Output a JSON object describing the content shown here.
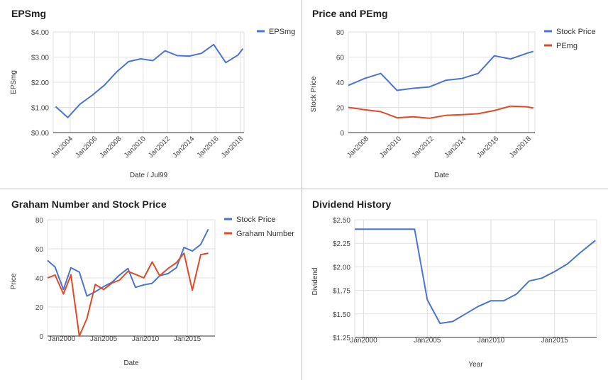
{
  "colors": {
    "blue": "#4a74d4",
    "red": "#df4a26",
    "grid": "#e0e0e0",
    "axis": "#333333"
  },
  "chart_data": [
    {
      "type": "line",
      "title": "EPSmg",
      "xlabel": "Date / Jul99",
      "ylabel": "EPSmg",
      "x_ticks": [
        {
          "v": 2004,
          "label": "Jan2004"
        },
        {
          "v": 2006,
          "label": "Jan2006"
        },
        {
          "v": 2008,
          "label": "Jan2008"
        },
        {
          "v": 2010,
          "label": "Jan2010"
        },
        {
          "v": 2012,
          "label": "Jan2012"
        },
        {
          "v": 2014,
          "label": "Jan2014"
        },
        {
          "v": 2016,
          "label": "Jan2016"
        },
        {
          "v": 2018,
          "label": "Jan2018"
        }
      ],
      "y_ticks": [
        {
          "v": 0,
          "label": "$0.00"
        },
        {
          "v": 1,
          "label": "$1.00"
        },
        {
          "v": 2,
          "label": "$2.00"
        },
        {
          "v": 3,
          "label": "$3.00"
        },
        {
          "v": 4,
          "label": "$4.00"
        }
      ],
      "xlim": [
        2002.6,
        2018.3
      ],
      "ylim": [
        0,
        4
      ],
      "legend_position": "right",
      "series": [
        {
          "name": "EPSmg",
          "color": "#4a74d4",
          "points": [
            [
              2002.8,
              1.03
            ],
            [
              2003.8,
              0.6
            ],
            [
              2004.8,
              1.13
            ],
            [
              2005.8,
              1.48
            ],
            [
              2006.8,
              1.88
            ],
            [
              2007.8,
              2.4
            ],
            [
              2008.8,
              2.82
            ],
            [
              2009.8,
              2.93
            ],
            [
              2010.8,
              2.86
            ],
            [
              2011.8,
              3.25
            ],
            [
              2012.8,
              3.06
            ],
            [
              2013.8,
              3.04
            ],
            [
              2014.8,
              3.15
            ],
            [
              2015.8,
              3.5
            ],
            [
              2016.8,
              2.78
            ],
            [
              2017.8,
              3.08
            ],
            [
              2018.2,
              3.33
            ]
          ]
        }
      ]
    },
    {
      "type": "line",
      "title": "Price and PEmg",
      "xlabel": "Date",
      "ylabel": "Stock Price",
      "x_ticks": [
        {
          "v": 2008,
          "label": "Jan2008"
        },
        {
          "v": 2010,
          "label": "Jan2010"
        },
        {
          "v": 2012,
          "label": "Jan2012"
        },
        {
          "v": 2014,
          "label": "Jan2014"
        },
        {
          "v": 2016,
          "label": "Jan2016"
        },
        {
          "v": 2018,
          "label": "Jan2018"
        }
      ],
      "y_ticks": [
        {
          "v": 0,
          "label": "0"
        },
        {
          "v": 20,
          "label": "20"
        },
        {
          "v": 40,
          "label": "40"
        },
        {
          "v": 60,
          "label": "60"
        },
        {
          "v": 80,
          "label": "80"
        }
      ],
      "xlim": [
        2006.9,
        2018.4
      ],
      "ylim": [
        0,
        80
      ],
      "legend_position": "right",
      "series": [
        {
          "name": "Stock Price",
          "color": "#4a74d4",
          "points": [
            [
              2006.9,
              37.5
            ],
            [
              2007.9,
              43
            ],
            [
              2008.9,
              47
            ],
            [
              2009.9,
              33.5
            ],
            [
              2010.9,
              35.2
            ],
            [
              2011.9,
              36.3
            ],
            [
              2012.9,
              41.5
            ],
            [
              2013.9,
              43
            ],
            [
              2014.9,
              47
            ],
            [
              2015.9,
              61
            ],
            [
              2016.9,
              58.5
            ],
            [
              2017.9,
              63
            ],
            [
              2018.3,
              64.5
            ]
          ]
        },
        {
          "name": "PEmg",
          "color": "#df4a26",
          "points": [
            [
              2006.9,
              20
            ],
            [
              2007.9,
              18.2
            ],
            [
              2008.9,
              16.6
            ],
            [
              2009.9,
              11.8
            ],
            [
              2010.9,
              12.5
            ],
            [
              2011.9,
              11.4
            ],
            [
              2012.9,
              13.7
            ],
            [
              2013.9,
              14.2
            ],
            [
              2014.9,
              15
            ],
            [
              2015.9,
              17.5
            ],
            [
              2016.9,
              21
            ],
            [
              2017.9,
              20.5
            ],
            [
              2018.3,
              19.5
            ]
          ]
        }
      ]
    },
    {
      "type": "line",
      "title": "Graham Number and Stock Price",
      "xlabel": "Date",
      "ylabel": "Price",
      "x_ticks": [
        {
          "v": 2000,
          "label": "Jan2000"
        },
        {
          "v": 2005,
          "label": "Jan2005"
        },
        {
          "v": 2010,
          "label": "Jan2010"
        },
        {
          "v": 2015,
          "label": "Jan2015"
        }
      ],
      "y_ticks": [
        {
          "v": 0,
          "label": "0"
        },
        {
          "v": 20,
          "label": "20"
        },
        {
          "v": 40,
          "label": "40"
        },
        {
          "v": 60,
          "label": "60"
        },
        {
          "v": 80,
          "label": "80"
        }
      ],
      "xlim": [
        1998.3,
        2018.3
      ],
      "ylim": [
        0,
        80
      ],
      "legend_position": "right",
      "series": [
        {
          "name": "Stock Price",
          "color": "#4a74d4",
          "points": [
            [
              1998.3,
              52
            ],
            [
              1999.2,
              47.5
            ],
            [
              2000.2,
              32
            ],
            [
              2001.1,
              47
            ],
            [
              2002.1,
              44
            ],
            [
              2003,
              27.5
            ],
            [
              2004,
              30.5
            ],
            [
              2005,
              34
            ],
            [
              2006,
              37
            ],
            [
              2006.9,
              42
            ],
            [
              2007.9,
              46.5
            ],
            [
              2008.8,
              33.5
            ],
            [
              2009.8,
              35.2
            ],
            [
              2010.8,
              36.3
            ],
            [
              2011.7,
              41.5
            ],
            [
              2012.7,
              43
            ],
            [
              2013.7,
              47
            ],
            [
              2014.6,
              61
            ],
            [
              2015.6,
              58.5
            ],
            [
              2016.6,
              63
            ],
            [
              2017.5,
              73.5
            ]
          ]
        },
        {
          "name": "Graham Number",
          "color": "#df4a26",
          "points": [
            [
              1998.3,
              40
            ],
            [
              1999.2,
              42
            ],
            [
              2000.2,
              29
            ],
            [
              2001.1,
              42
            ],
            [
              2002.1,
              0
            ],
            [
              2003,
              12
            ],
            [
              2004,
              35.5
            ],
            [
              2005,
              32
            ],
            [
              2006,
              36.5
            ],
            [
              2006.9,
              38.5
            ],
            [
              2007.9,
              44.5
            ],
            [
              2008.8,
              42.5
            ],
            [
              2009.8,
              40
            ],
            [
              2010.8,
              51
            ],
            [
              2011.7,
              41.5
            ],
            [
              2012.7,
              46.5
            ],
            [
              2013.7,
              50.5
            ],
            [
              2014.6,
              57
            ],
            [
              2015.6,
              31.5
            ],
            [
              2016.6,
              56
            ],
            [
              2017.5,
              57
            ]
          ]
        }
      ]
    },
    {
      "type": "line",
      "title": "Dividend History",
      "xlabel": "Year",
      "ylabel": "Dividend",
      "x_ticks": [
        {
          "v": 2000,
          "label": "Jan2000"
        },
        {
          "v": 2005,
          "label": "Jan2005"
        },
        {
          "v": 2010,
          "label": "Jan2010"
        },
        {
          "v": 2015,
          "label": "Jan2015"
        }
      ],
      "y_ticks": [
        {
          "v": 1.25,
          "label": "$1.25"
        },
        {
          "v": 1.5,
          "label": "$1.50"
        },
        {
          "v": 1.75,
          "label": "$1.75"
        },
        {
          "v": 2.0,
          "label": "$2.00"
        },
        {
          "v": 2.25,
          "label": "$2.25"
        },
        {
          "v": 2.5,
          "label": "$2.50"
        }
      ],
      "xlim": [
        1999.3,
        2018.3
      ],
      "ylim": [
        1.25,
        2.5
      ],
      "legend_position": "none",
      "series": [
        {
          "name": "",
          "color": "#4a74d4",
          "points": [
            [
              1999.3,
              2.4
            ],
            [
              2004,
              2.4
            ],
            [
              2005,
              1.65
            ],
            [
              2006,
              1.4
            ],
            [
              2007,
              1.42
            ],
            [
              2008,
              1.5
            ],
            [
              2009,
              1.58
            ],
            [
              2010,
              1.64
            ],
            [
              2011,
              1.64
            ],
            [
              2012,
              1.71
            ],
            [
              2013,
              1.85
            ],
            [
              2014,
              1.88
            ],
            [
              2015,
              1.95
            ],
            [
              2016,
              2.03
            ],
            [
              2017,
              2.15
            ],
            [
              2018.2,
              2.28
            ]
          ]
        }
      ]
    }
  ]
}
